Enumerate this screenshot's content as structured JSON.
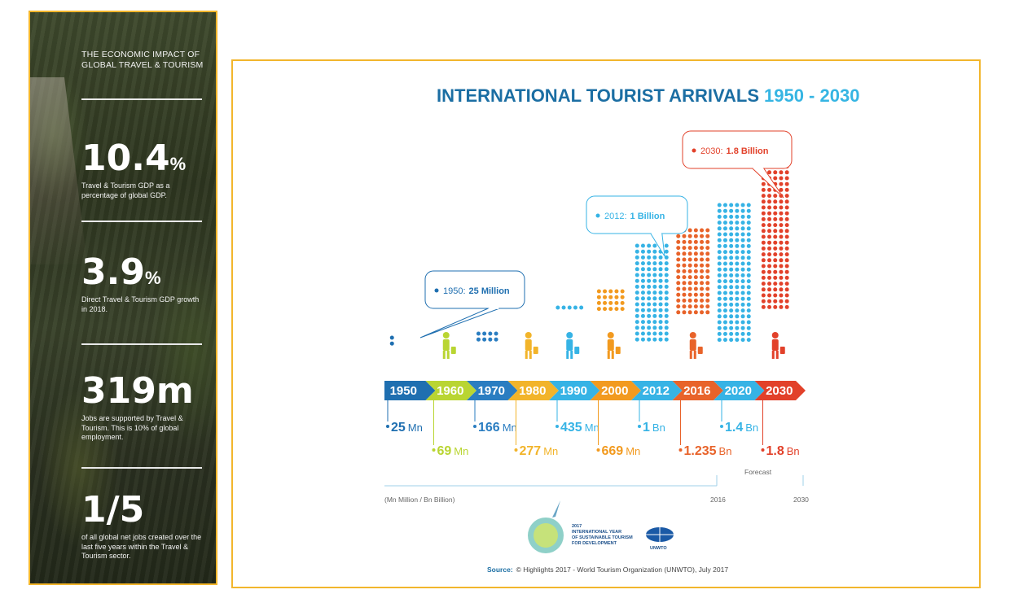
{
  "side_panel": {
    "title": "THE ECONOMIC IMPACT OF GLOBAL TRAVEL & TOURISM",
    "stats": [
      {
        "value": "10.4",
        "unit": "%",
        "description": "Travel & Tourism GDP as a percentage of global GDP."
      },
      {
        "value": "3.9",
        "unit": "%",
        "description": "Direct Travel & Tourism GDP growth in 2018."
      },
      {
        "value": "319m",
        "unit": "",
        "description": "Jobs are supported by Travel & Tourism. This is 10% of global employment."
      },
      {
        "value": "1/5",
        "unit": "",
        "description": "of all global net jobs created over the last five years within the Travel & Tourism sector."
      }
    ]
  },
  "chart_data": {
    "type": "bar",
    "title": "INTERNATIONAL TOURIST ARRIVALS",
    "title_years": "1950 - 2030",
    "categories": [
      "1950",
      "1960",
      "1970",
      "1980",
      "1990",
      "2000",
      "2012",
      "2016",
      "2020",
      "2030"
    ],
    "value_labels": [
      {
        "num": "25",
        "unit": "Mn"
      },
      {
        "num": "69",
        "unit": "Mn"
      },
      {
        "num": "166",
        "unit": "Mn"
      },
      {
        "num": "277",
        "unit": "Mn"
      },
      {
        "num": "435",
        "unit": "Mn"
      },
      {
        "num": "669",
        "unit": "Mn"
      },
      {
        "num": "1",
        "unit": "Bn"
      },
      {
        "num": "1.235",
        "unit": "Bn"
      },
      {
        "num": "1.4",
        "unit": "Bn"
      },
      {
        "num": "1.8",
        "unit": "Bn"
      }
    ],
    "series": [
      {
        "values": [
          25,
          69,
          166,
          277,
          435,
          669,
          1000,
          1235,
          1400,
          1800
        ]
      }
    ],
    "colors": [
      "#1f6fb0",
      "#b9d532",
      "#2a7dc1",
      "#f2b42a",
      "#36b3e5",
      "#f29a1f",
      "#36b3e5",
      "#e8632a",
      "#36b3e5",
      "#e2412a"
    ],
    "callouts": [
      {
        "year": "1950",
        "label": "1950:",
        "value": "25 Million",
        "color": "#1f6fb0"
      },
      {
        "year": "2012",
        "label": "2012:",
        "value": "1 Billion",
        "color": "#36b3e5"
      },
      {
        "year": "2030",
        "label": "2030:",
        "value": "1.8 Billion",
        "color": "#e2412a"
      }
    ],
    "legend_note": "(Mn Million / Bn Billion)",
    "forecast_label": "Forecast",
    "forecast_start": "2016",
    "forecast_end": "2030",
    "logos": [
      "2017 INTERNATIONAL YEAR OF SUSTAINABLE TOURISM FOR DEVELOPMENT",
      "UNWTO"
    ],
    "source_label": "Source:",
    "source_text": "© Highlights 2017 - World Tourism Organization (UNWTO), July 2017"
  }
}
